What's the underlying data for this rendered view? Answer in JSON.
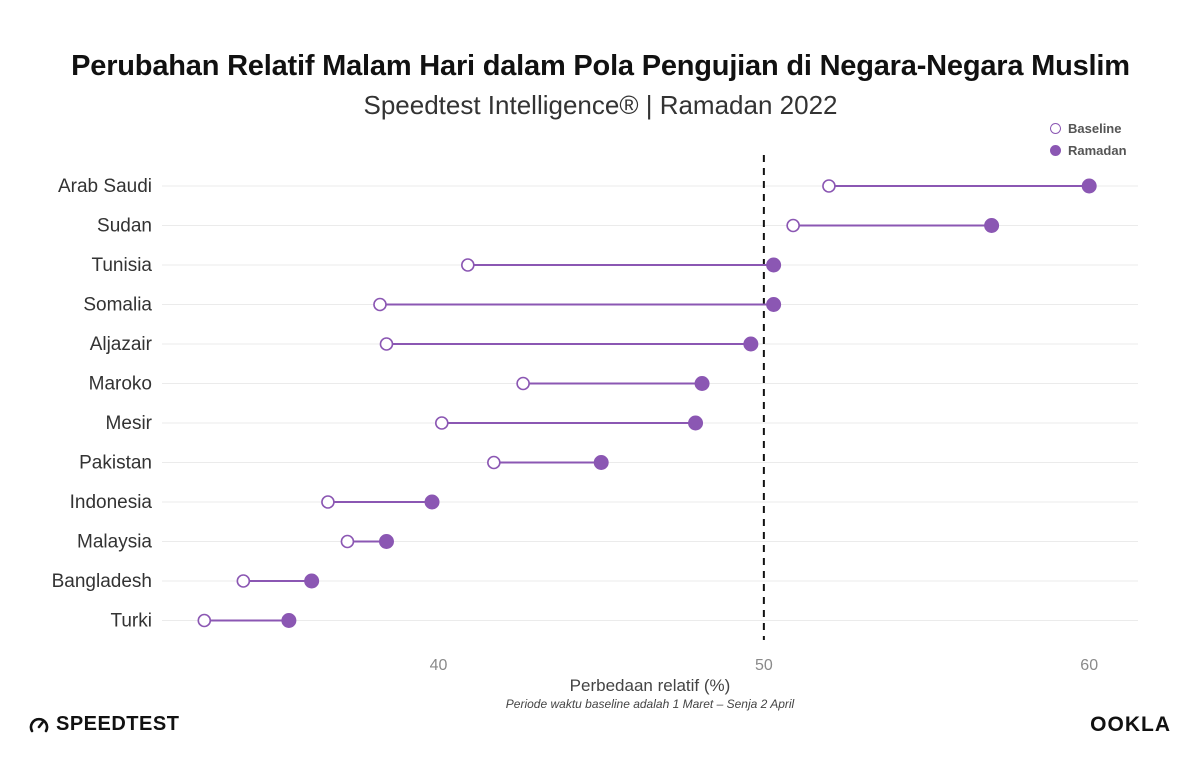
{
  "title": "Perubahan Relatif Malam Hari dalam Pola Pengujian di Negara-Negara Muslim",
  "subtitle": "Speedtest Intelligence® | Ramadan 2022",
  "footnote": "Periode waktu baseline adalah 1 Maret – Senja 2 April",
  "brand_left": "SPEEDTEST",
  "brand_right": "OOKLA",
  "colors": {
    "accent": "#8b57b3",
    "gridline": "#ebebeb",
    "reference_line": "#111111"
  },
  "chart_data": {
    "type": "dumbbell",
    "xlabel": "Perbedaan relatif (%)",
    "ylabel": "",
    "xlim": [
      31.5,
      61.5
    ],
    "xticks": [
      40,
      50,
      60
    ],
    "reference_line": 50,
    "legend": {
      "placement": "top-right",
      "entries": [
        "Baseline",
        "Ramadan"
      ]
    },
    "grid": "horizontal",
    "categories": [
      "Arab Saudi",
      "Sudan",
      "Tunisia",
      "Somalia",
      "Aljazair",
      "Maroko",
      "Mesir",
      "Pakistan",
      "Indonesia",
      "Malaysia",
      "Bangladesh",
      "Turki"
    ],
    "series": [
      {
        "name": "Baseline",
        "marker": "hollow",
        "values": [
          52.0,
          50.9,
          40.9,
          38.2,
          38.4,
          42.6,
          40.1,
          41.7,
          36.6,
          37.2,
          34.0,
          32.8
        ]
      },
      {
        "name": "Ramadan",
        "marker": "filled",
        "values": [
          60.0,
          57.0,
          50.3,
          50.3,
          49.6,
          48.1,
          47.9,
          45.0,
          39.8,
          38.4,
          36.1,
          35.4
        ]
      }
    ]
  }
}
